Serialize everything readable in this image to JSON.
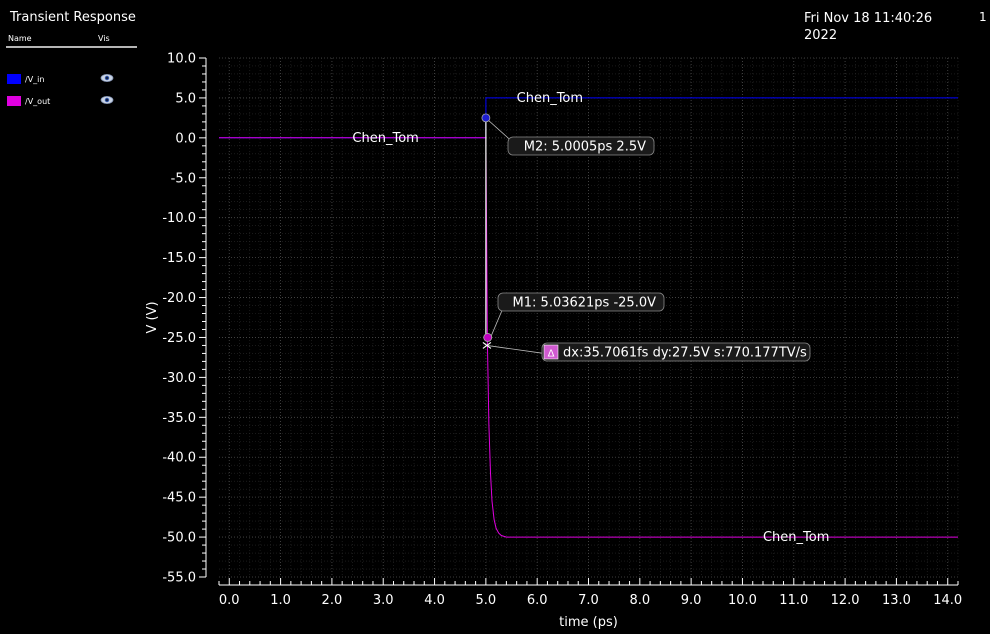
{
  "window": {
    "title": "Transient Response",
    "timestamp": "Fri Nov 18 11:40:26 2022",
    "page_number": "1"
  },
  "legend": {
    "col_name": "Name",
    "col_vis": "Vis",
    "items": [
      {
        "name": "/V_in",
        "color": "#0000ff",
        "icon": "eye-icon"
      },
      {
        "name": "/V_out",
        "color": "#e000e0",
        "icon": "eye-icon"
      }
    ]
  },
  "chart_data": {
    "type": "line",
    "xlabel": "time (ps)",
    "ylabel": "V (V)",
    "xlim": [
      -0.2,
      14.2
    ],
    "ylim": [
      -55.0,
      10.0
    ],
    "xticks": [
      "0.0",
      "1.0",
      "2.0",
      "3.0",
      "4.0",
      "5.0",
      "6.0",
      "7.0",
      "8.0",
      "9.0",
      "10.0",
      "11.0",
      "12.0",
      "13.0",
      "14.0"
    ],
    "yticks": [
      "10.0",
      "5.0",
      "0.0",
      "-5.0",
      "-10.0",
      "-15.0",
      "-20.0",
      "-25.0",
      "-30.0",
      "-35.0",
      "-40.0",
      "-45.0",
      "-50.0",
      "-55.0"
    ],
    "grid": true,
    "series": [
      {
        "name": "/V_in",
        "color": "#0000ff",
        "x": [
          -0.2,
          5.0,
          5.0,
          14.2
        ],
        "y": [
          0.0,
          0.0,
          5.0,
          5.0
        ]
      },
      {
        "name": "/V_out",
        "color": "#e000e0",
        "x": [
          -0.2,
          5.0,
          5.03,
          5.06,
          5.09,
          5.12,
          5.16,
          5.2,
          5.25,
          5.3,
          5.4,
          5.6,
          14.2
        ],
        "y": [
          0.0,
          0.0,
          -25.5,
          -36.0,
          -42.0,
          -45.5,
          -47.8,
          -48.9,
          -49.5,
          -49.8,
          -50.0,
          -50.0,
          -50.0
        ]
      }
    ],
    "labels": [
      {
        "text": "Chen_Tom",
        "x": 5.6,
        "y": 5.0,
        "series": "/V_in"
      },
      {
        "text": "Chen_Tom",
        "x": 2.4,
        "y": 0.0,
        "series": "/V_out"
      },
      {
        "text": "Chen_Tom",
        "x": 10.4,
        "y": -50.0,
        "series": "/V_out"
      }
    ],
    "markers": [
      {
        "id": "M2",
        "text": "M2: 5.0005ps 2.5V",
        "x": 5.0005,
        "y": 2.5,
        "color": "#1c1cd0"
      },
      {
        "id": "M1",
        "text": "M1: 5.03621ps -25.0V",
        "x": 5.03621,
        "y": -25.0,
        "color": "#c000c0"
      }
    ],
    "delta": {
      "symbol": "Δ",
      "text": "dx:35.7061fs dy:27.5V s:770.177TV/s",
      "x": 5.02,
      "y": -26.0
    }
  }
}
